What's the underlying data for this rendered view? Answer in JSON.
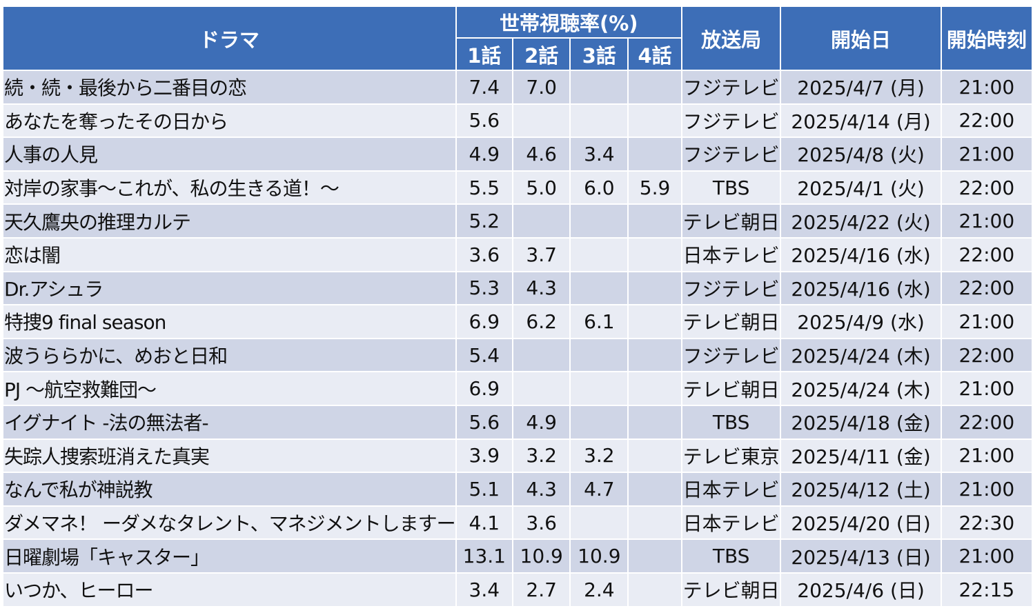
{
  "chart_data": {
    "type": "table",
    "headers": {
      "drama": "ドラマ",
      "rating_group": "世帯視聴率(%)",
      "episodes": [
        "1話",
        "2話",
        "3話",
        "4話"
      ],
      "station": "放送局",
      "start_date": "開始日",
      "start_time": "開始時刻"
    },
    "rows": [
      {
        "drama": "続・続・最後から二番目の恋",
        "ratings": [
          "7.4",
          "7.0",
          "",
          ""
        ],
        "station": "フジテレビ",
        "start_date": "2025/4/7 (月)",
        "start_time": "21:00"
      },
      {
        "drama": "あなたを奪ったその日から",
        "ratings": [
          "5.6",
          "",
          "",
          ""
        ],
        "station": "フジテレビ",
        "start_date": "2025/4/14 (月)",
        "start_time": "22:00"
      },
      {
        "drama": "人事の人見",
        "ratings": [
          "4.9",
          "4.6",
          "3.4",
          ""
        ],
        "station": "フジテレビ",
        "start_date": "2025/4/8 (火)",
        "start_time": "21:00"
      },
      {
        "drama": "対岸の家事～これが、私の生きる道！～",
        "ratings": [
          "5.5",
          "5.0",
          "6.0",
          "5.9"
        ],
        "station": "TBS",
        "start_date": "2025/4/1 (火)",
        "start_time": "22:00"
      },
      {
        "drama": "天久鷹央の推理カルテ",
        "ratings": [
          "5.2",
          "",
          "",
          ""
        ],
        "station": "テレビ朝日",
        "start_date": "2025/4/22 (火)",
        "start_time": "21:00"
      },
      {
        "drama": "恋は闇",
        "ratings": [
          "3.6",
          "3.7",
          "",
          ""
        ],
        "station": "日本テレビ",
        "start_date": "2025/4/16 (水)",
        "start_time": "22:00"
      },
      {
        "drama": "Dr.アシュラ",
        "ratings": [
          "5.3",
          "4.3",
          "",
          ""
        ],
        "station": "フジテレビ",
        "start_date": "2025/4/16 (水)",
        "start_time": "22:00"
      },
      {
        "drama": "特捜9 final season",
        "ratings": [
          "6.9",
          "6.2",
          "6.1",
          ""
        ],
        "station": "テレビ朝日",
        "start_date": "2025/4/9 (水)",
        "start_time": "21:00"
      },
      {
        "drama": "波うららかに、めおと日和",
        "ratings": [
          "5.4",
          "",
          "",
          ""
        ],
        "station": "フジテレビ",
        "start_date": "2025/4/24 (木)",
        "start_time": "22:00"
      },
      {
        "drama": "PJ ～航空救難団～",
        "ratings": [
          "6.9",
          "",
          "",
          ""
        ],
        "station": "テレビ朝日",
        "start_date": "2025/4/24 (木)",
        "start_time": "21:00"
      },
      {
        "drama": "イグナイト -法の無法者-",
        "ratings": [
          "5.6",
          "4.9",
          "",
          ""
        ],
        "station": "TBS",
        "start_date": "2025/4/18 (金)",
        "start_time": "22:00"
      },
      {
        "drama": "失踪人捜索班消えた真実",
        "ratings": [
          "3.9",
          "3.2",
          "3.2",
          ""
        ],
        "station": "テレビ東京",
        "start_date": "2025/4/11 (金)",
        "start_time": "21:00"
      },
      {
        "drama": "なんで私が神説教",
        "ratings": [
          "5.1",
          "4.3",
          "4.7",
          ""
        ],
        "station": "日本テレビ",
        "start_date": "2025/4/12 (土)",
        "start_time": "21:00"
      },
      {
        "drama": "ダメマネ！ ーダメなタレント、マネジメントしますー",
        "ratings": [
          "4.1",
          "3.6",
          "",
          ""
        ],
        "station": "日本テレビ",
        "start_date": "2025/4/20 (日)",
        "start_time": "22:30"
      },
      {
        "drama": "日曜劇場「キャスター」",
        "ratings": [
          "13.1",
          "10.9",
          "10.9",
          ""
        ],
        "station": "TBS",
        "start_date": "2025/4/13 (日)",
        "start_time": "21:00"
      },
      {
        "drama": "いつか、ヒーロー",
        "ratings": [
          "3.4",
          "2.7",
          "2.4",
          ""
        ],
        "station": "テレビ朝日",
        "start_date": "2025/4/6 (日)",
        "start_time": "22:15"
      }
    ]
  },
  "colors": {
    "header_bg": "#3d6eb7",
    "row_odd_bg": "#cfd5e6",
    "row_even_bg": "#e9ecf4",
    "border": "#ffffff"
  }
}
